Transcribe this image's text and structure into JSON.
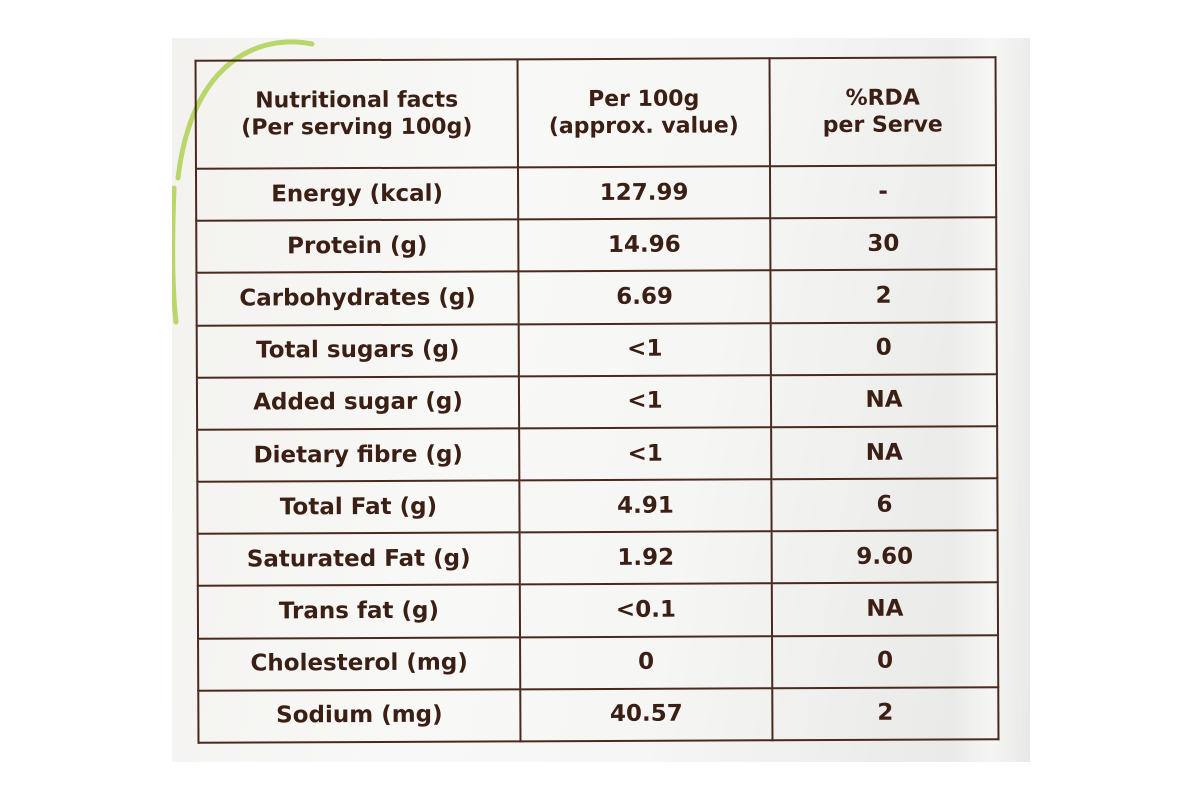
{
  "header": {
    "col1_line1": "Nutritional facts",
    "col1_line2": "(Per serving 100g)",
    "col2_line1": "Per 100g",
    "col2_line2": "(approx. value)",
    "col3_line1": "%RDA",
    "col3_line2": "per Serve"
  },
  "rows": [
    {
      "name": "Energy (kcal)",
      "value": "127.99",
      "rda": "-"
    },
    {
      "name": "Protein (g)",
      "value": "14.96",
      "rda": "30"
    },
    {
      "name": "Carbohydrates (g)",
      "value": "6.69",
      "rda": "2"
    },
    {
      "name": "Total sugars (g)",
      "value": "<1",
      "rda": "0"
    },
    {
      "name": "Added sugar (g)",
      "value": "<1",
      "rda": "NA"
    },
    {
      "name": "Dietary fibre (g)",
      "value": "<1",
      "rda": "NA"
    },
    {
      "name": "Total Fat (g)",
      "value": "4.91",
      "rda": "6"
    },
    {
      "name": "Saturated Fat (g)",
      "value": "1.92",
      "rda": "9.60"
    },
    {
      "name": "Trans fat (g)",
      "value": "<0.1",
      "rda": "NA"
    },
    {
      "name": "Cholesterol (mg)",
      "value": "0",
      "rda": "0"
    },
    {
      "name": "Sodium (mg)",
      "value": "40.57",
      "rda": "2"
    }
  ],
  "colors": {
    "ink": "#3b1f15",
    "border": "#4a2a1e",
    "leaf_green": "#b8d66a",
    "package": "#f5f5f3"
  }
}
